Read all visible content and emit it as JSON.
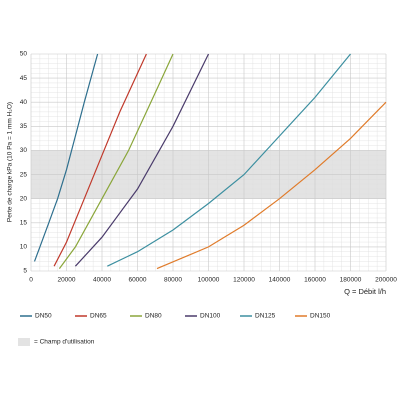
{
  "chart_data": {
    "type": "line",
    "y_label": "Perte de charge kPa (10 Pa = 1 mm H₂O)",
    "x_label": "Q = Débit l/h",
    "xlim": [
      0,
      200000
    ],
    "ylim": [
      5,
      50
    ],
    "xticks": [
      0,
      20000,
      40000,
      60000,
      80000,
      100000,
      120000,
      140000,
      160000,
      180000,
      200000
    ],
    "yticks": [
      5,
      10,
      15,
      20,
      25,
      30,
      35,
      40,
      45,
      50
    ],
    "grid": true,
    "band": {
      "range": [
        20,
        30
      ],
      "color": "#e3e3e3",
      "label": "= Champ d'utilisation"
    },
    "series": [
      {
        "name": "DN50",
        "color": "#2e6f8e",
        "x": [
          2000,
          5000,
          10000,
          15000,
          20000,
          25000,
          30000,
          37500
        ],
        "values": [
          7,
          10,
          15,
          20,
          26,
          33,
          40,
          50
        ]
      },
      {
        "name": "DN65",
        "color": "#c0392b",
        "x": [
          13000,
          20000,
          30000,
          40000,
          50000,
          65000
        ],
        "values": [
          6,
          11,
          20,
          29,
          38,
          50
        ]
      },
      {
        "name": "DN80",
        "color": "#8aa63a",
        "x": [
          16000,
          25000,
          40000,
          55000,
          70000,
          80000
        ],
        "values": [
          5.5,
          10,
          20,
          30,
          42,
          50
        ]
      },
      {
        "name": "DN100",
        "color": "#4a3b6b",
        "x": [
          25000,
          40000,
          60000,
          80000,
          100000
        ],
        "values": [
          6,
          12,
          22,
          35,
          50
        ]
      },
      {
        "name": "DN125",
        "color": "#3c8fa0",
        "x": [
          43000,
          60000,
          80000,
          100000,
          120000,
          140000,
          160000,
          180000
        ],
        "values": [
          6,
          9,
          13.5,
          19,
          25,
          33,
          41,
          50
        ]
      },
      {
        "name": "DN150",
        "color": "#e07b2a",
        "x": [
          71000,
          100000,
          120000,
          140000,
          160000,
          180000,
          200000
        ],
        "values": [
          5.5,
          10,
          14.5,
          20,
          26,
          32.5,
          40
        ]
      }
    ]
  }
}
